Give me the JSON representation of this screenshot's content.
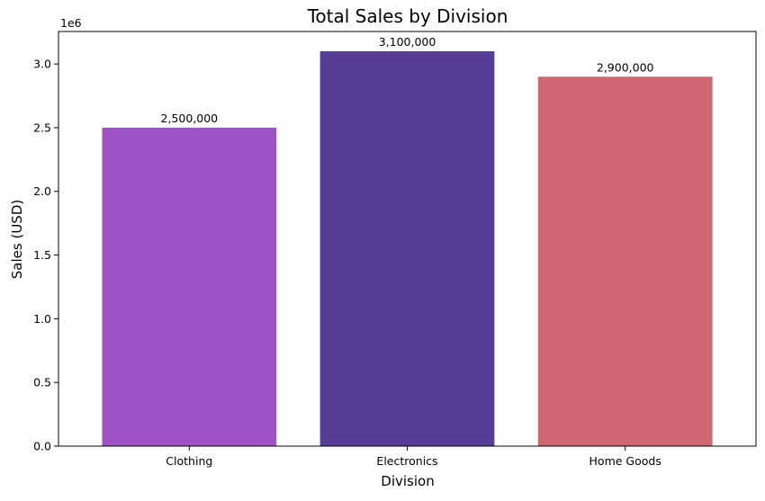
{
  "chart_data": {
    "type": "bar",
    "title": "Total Sales by Division",
    "xlabel": "Division",
    "ylabel": "Sales (USD)",
    "categories": [
      "Clothing",
      "Electronics",
      "Home Goods"
    ],
    "values": [
      2500000,
      3100000,
      2900000
    ],
    "value_labels": [
      "2,500,000",
      "3,100,000",
      "2,900,000"
    ],
    "colors": [
      "#9f53c7",
      "#573c97",
      "#d06672"
    ],
    "ylim": [
      0,
      3255000
    ],
    "y_ticks": [
      0,
      500000,
      1000000,
      1500000,
      2000000,
      2500000,
      3000000
    ],
    "y_tick_labels": [
      "0.0",
      "0.5",
      "1.0",
      "1.5",
      "2.0",
      "2.5",
      "3.0"
    ],
    "y_offset_label": "1e6",
    "grid": false,
    "legend": "none"
  }
}
